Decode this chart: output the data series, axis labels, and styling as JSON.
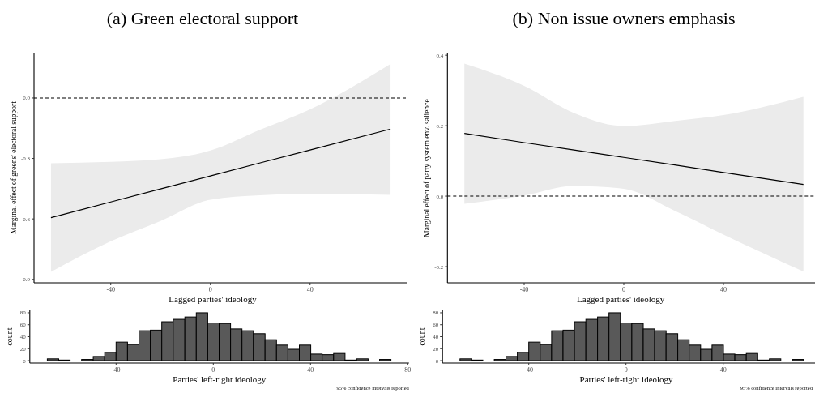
{
  "chart_data": [
    {
      "type": "line",
      "title": "(a) Green electoral support",
      "xlabel": "Lagged parties' ideology",
      "ylabel": "Marginal effect of greens' electoral support",
      "xlim": [
        -70.8,
        79.1
      ],
      "ylim": [
        -0.917,
        0.225
      ],
      "xticks": [
        -40,
        0,
        40
      ],
      "yticks": [
        {
          "value": 0,
          "label": "0.0"
        },
        -0.3,
        -0.6,
        -0.9
      ],
      "series": [
        {
          "color": "#000000",
          "x": [
            -64,
            -40,
            -20,
            0,
            20,
            40,
            72.3
          ],
          "values": [
            -0.594,
            -0.516,
            -0.451,
            -0.387,
            -0.322,
            -0.258,
            -0.154
          ],
          "lower": [
            -0.863,
            -0.711,
            -0.61,
            -0.505,
            -0.483,
            -0.475,
            -0.481
          ],
          "upper": [
            -0.324,
            -0.317,
            -0.304,
            -0.261,
            -0.157,
            -0.056,
            0.169
          ]
        }
      ],
      "ref_lines": [
        {
          "axis": "y",
          "value": 0,
          "line_style": "dashed",
          "color": "#000000"
        }
      ]
    },
    {
      "type": "histogram",
      "xlabel": "Parties' left-right ideology",
      "ylabel": "count",
      "color": "#595959",
      "xlim": [
        -75.5,
        80.5
      ],
      "ylim": [
        -4,
        84
      ],
      "xticks": [
        -40,
        0,
        40,
        80
      ],
      "yticks": [
        0,
        20,
        40,
        60,
        80
      ],
      "bins": [
        -68.3,
        -63.6,
        -58.9,
        -54.2,
        -49.4,
        -44.7,
        -40.0,
        -35.3,
        -30.6,
        -25.9,
        -21.2,
        -16.5,
        -11.7,
        -7.0,
        -2.3,
        2.4,
        7.1,
        11.8,
        16.5,
        21.3,
        26.0,
        30.7,
        35.4,
        40.1,
        44.8,
        49.5,
        54.2,
        59.0,
        63.7,
        68.4,
        73.1
      ],
      "values": [
        3,
        1,
        0,
        2,
        7,
        14,
        31,
        27,
        50,
        51,
        65,
        69,
        73,
        80,
        63,
        62,
        53,
        50,
        45,
        35,
        26,
        19,
        26,
        11,
        10,
        12,
        1,
        3,
        0,
        2
      ],
      "annotations": [
        "95% confidence intervals reported"
      ]
    },
    {
      "type": "line",
      "title": "(b) Non issue owners emphasis",
      "xlabel": "Lagged parties' ideology",
      "ylabel": "Marginal effect of party system env. salience",
      "xlim": [
        -70.8,
        79.1
      ],
      "ylim": [
        -0.246,
        0.405
      ],
      "xticks": [
        -40,
        0,
        40
      ],
      "yticks": [
        0.4,
        0.2,
        {
          "value": 0,
          "label": "0.0"
        },
        -0.2
      ],
      "series": [
        {
          "color": "#000000",
          "x": [
            -64,
            -40,
            -20,
            0,
            20,
            40,
            72.1
          ],
          "values": [
            0.178,
            0.152,
            0.131,
            0.11,
            0.089,
            0.067,
            0.033
          ],
          "lower": [
            -0.022,
            0.002,
            0.029,
            0.021,
            -0.04,
            -0.109,
            -0.214
          ],
          "upper": [
            0.376,
            0.313,
            0.236,
            0.199,
            0.213,
            0.23,
            0.282
          ]
        }
      ],
      "ref_lines": [
        {
          "axis": "y",
          "value": 0,
          "line_style": "dashed",
          "color": "#000000"
        }
      ]
    },
    {
      "type": "histogram",
      "xlabel": "Parties' left-right ideology",
      "ylabel": "count",
      "color": "#595959",
      "xlim": [
        -75.5,
        80.5
      ],
      "ylim": [
        -4,
        84
      ],
      "xticks": [
        -40,
        0,
        40
      ],
      "yticks": [
        0,
        20,
        40,
        60,
        80
      ],
      "bins": [
        -68.3,
        -63.6,
        -58.9,
        -54.2,
        -49.4,
        -44.7,
        -40.0,
        -35.3,
        -30.6,
        -25.9,
        -21.2,
        -16.5,
        -11.7,
        -7.0,
        -2.3,
        2.4,
        7.1,
        11.8,
        16.5,
        21.3,
        26.0,
        30.7,
        35.4,
        40.1,
        44.8,
        49.5,
        54.2,
        59.0,
        63.7,
        68.4,
        73.1
      ],
      "values": [
        3,
        1,
        0,
        2,
        7,
        14,
        31,
        27,
        50,
        51,
        65,
        69,
        73,
        80,
        63,
        62,
        53,
        50,
        45,
        35,
        26,
        19,
        26,
        11,
        10,
        12,
        1,
        3,
        0,
        2
      ],
      "annotations": [
        "95% confidence intervals reported"
      ]
    }
  ]
}
